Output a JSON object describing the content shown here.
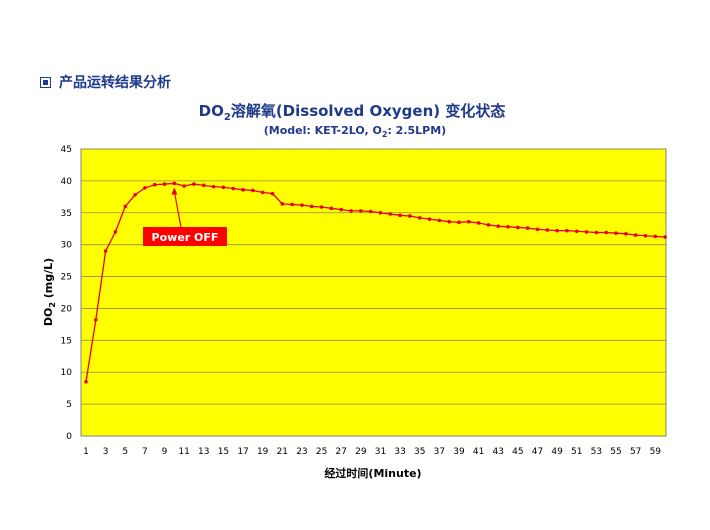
{
  "section": {
    "title": "产品运转结果分析",
    "icon": "square-bullet-icon"
  },
  "chart_data": {
    "type": "line",
    "title": {
      "prefix": "DO",
      "sub": "2",
      "rest": "溶解氧(Dissolved Oxygen) 变化状态"
    },
    "subtitle": {
      "part1": "(Model: KET-2LO, O",
      "sub": "2",
      "part2": ": 2.5LPM)"
    },
    "xlabel": "经过时间(Minute)",
    "ylabel": {
      "prefix": "DO",
      "sub": "2",
      "rest": " (mg/L)"
    },
    "xlim": [
      1,
      60
    ],
    "ylim": [
      0,
      45
    ],
    "yticks": [
      0,
      5,
      10,
      15,
      20,
      25,
      30,
      35,
      40,
      45
    ],
    "xticks": [
      1,
      3,
      5,
      7,
      9,
      11,
      13,
      15,
      17,
      19,
      21,
      23,
      25,
      27,
      29,
      31,
      33,
      35,
      37,
      39,
      41,
      43,
      45,
      47,
      49,
      51,
      53,
      55,
      57,
      59
    ],
    "grid": true,
    "plot_background": "#ffff00",
    "series": [
      {
        "color": "#e8001c",
        "x": [
          1,
          2,
          3,
          4,
          5,
          6,
          7,
          8,
          9,
          10,
          11,
          12,
          13,
          14,
          15,
          16,
          17,
          18,
          19,
          20,
          21,
          22,
          23,
          24,
          25,
          26,
          27,
          28,
          29,
          30,
          31,
          32,
          33,
          34,
          35,
          36,
          37,
          38,
          39,
          40,
          41,
          42,
          43,
          44,
          45,
          46,
          47,
          48,
          49,
          50,
          51,
          52,
          53,
          54,
          55,
          56,
          57,
          58,
          59,
          60
        ],
        "values": [
          8.5,
          18.2,
          29.0,
          32.0,
          36.0,
          37.8,
          38.9,
          39.4,
          39.5,
          39.6,
          39.2,
          39.5,
          39.3,
          39.1,
          39.0,
          38.8,
          38.6,
          38.5,
          38.2,
          38.0,
          36.4,
          36.3,
          36.2,
          36.0,
          35.9,
          35.7,
          35.5,
          35.3,
          35.3,
          35.2,
          35.0,
          34.8,
          34.6,
          34.5,
          34.2,
          34.0,
          33.8,
          33.6,
          33.5,
          33.6,
          33.4,
          33.1,
          32.9,
          32.8,
          32.7,
          32.6,
          32.4,
          32.3,
          32.2,
          32.2,
          32.1,
          32.0,
          31.9,
          31.9,
          31.8,
          31.7,
          31.5,
          31.4,
          31.3,
          31.2
        ]
      }
    ],
    "annotation": {
      "text": "Power OFF",
      "x": 10,
      "y": 39.6,
      "color": "#ff0000"
    }
  }
}
